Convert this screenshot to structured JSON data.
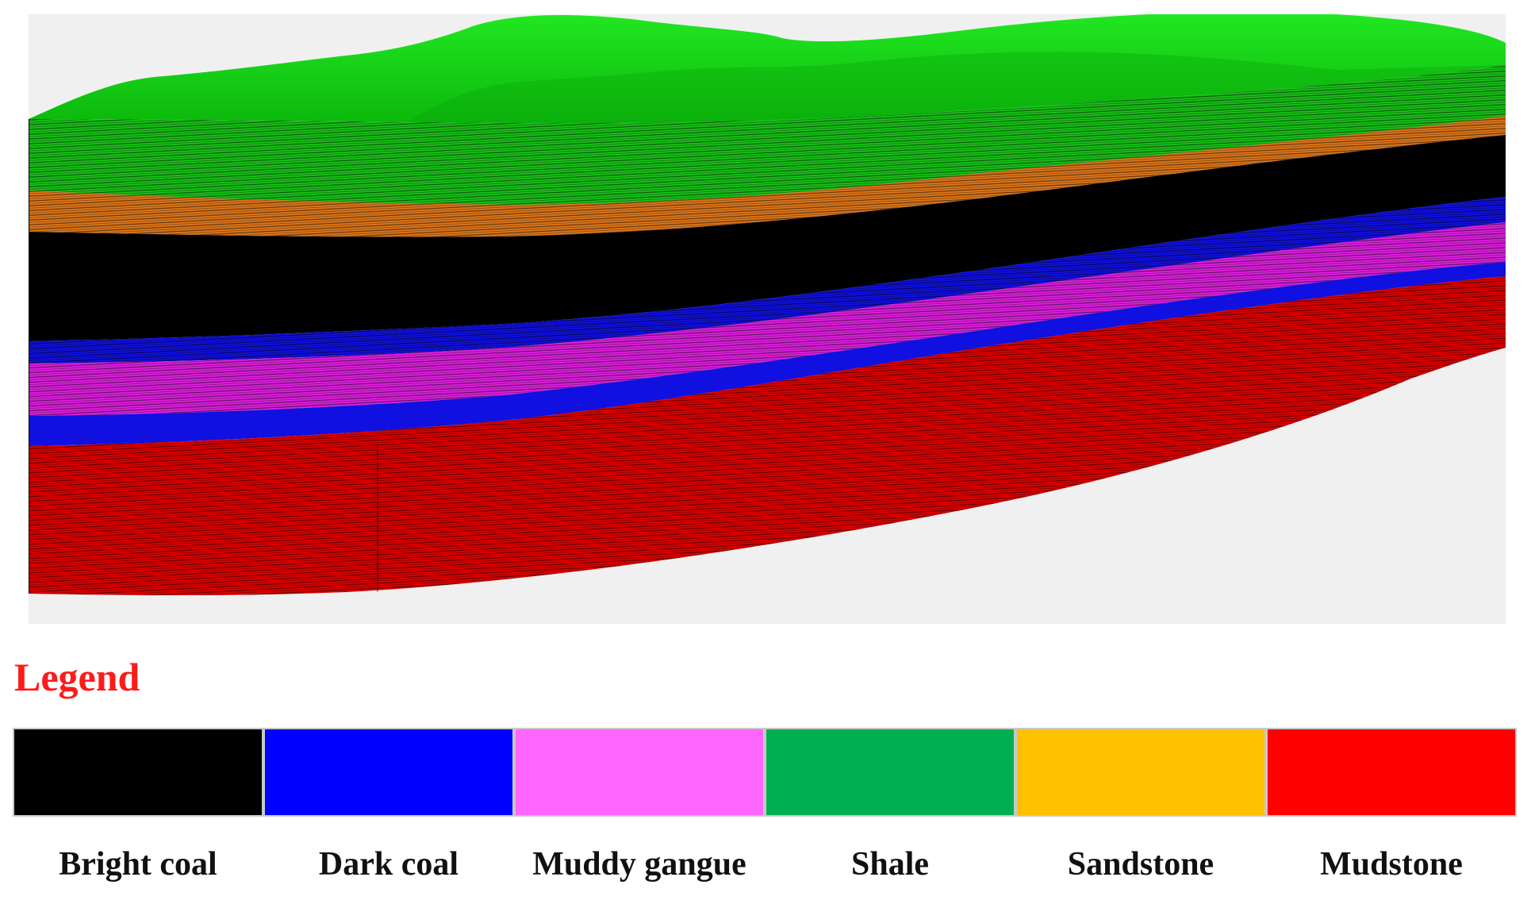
{
  "legend": {
    "title": "Legend",
    "items": [
      {
        "label": "Bright coal",
        "color": "#000000"
      },
      {
        "label": "Dark coal",
        "color": "#0000ff"
      },
      {
        "label": "Muddy gangue",
        "color": "#ff66ff"
      },
      {
        "label": "Shale",
        "color": "#00b050"
      },
      {
        "label": "Sandstone",
        "color": "#ffc000"
      },
      {
        "label": "Mudstone",
        "color": "#ff0000"
      }
    ]
  },
  "model_colors": {
    "background": "#f0f0f0",
    "terrain_surface": "#0fd60f",
    "shale_section": "#18c418",
    "sandstone_section": "#e0781a",
    "bright_coal_section": "#000000",
    "dark_coal_section": "#1010e0",
    "muddy_gangue_section": "#e020e0",
    "mudstone_section": "#e00000"
  }
}
